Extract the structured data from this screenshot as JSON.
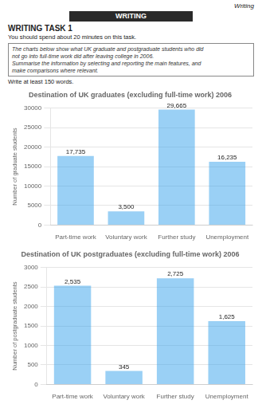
{
  "annotations": [
    "Writing",
    "WRITING",
    "WRITING TASK 1",
    "You should spend about 20 minutes on this task.",
    "The charts below show what UK graduate and postgraduate students who did",
    "not go into full-time work did after leaving college in 2006.",
    "Summarise the information by selecting and reporting the main features, and",
    "make comparisons where relevant.",
    "Write at least 150 words."
  ],
  "chart_data": [
    {
      "type": "bar",
      "title": "Destination of UK graduates (excluding full-time work) 2006",
      "categories": [
        "Part-time work",
        "Voluntary work",
        "Further study",
        "Unemployment"
      ],
      "values": [
        17735,
        3500,
        29665,
        16235
      ],
      "value_labels": [
        "17,735",
        "3,500",
        "29,665",
        "16,235"
      ],
      "data_labels": true,
      "y_label": "Number of graduate students",
      "ylim": [
        0,
        30000
      ],
      "yticks": [
        0,
        5000,
        10000,
        15000,
        20000,
        25000,
        30000
      ],
      "grid": true
    },
    {
      "type": "bar",
      "title": "Destination of UK postgraduates (excluding full-time work) 2006",
      "categories": [
        "Part-time work",
        "Voluntary work",
        "Further study",
        "Unemployment"
      ],
      "values": [
        2535,
        345,
        2725,
        1625
      ],
      "value_labels": [
        "2,535",
        "345",
        "2,725",
        "1,625"
      ],
      "data_labels": true,
      "y_label": "Number of postgraduate students",
      "ylim": [
        0,
        3000
      ],
      "yticks": [
        0,
        500,
        1000,
        1500,
        2000,
        2500,
        3000
      ],
      "grid": true
    }
  ]
}
